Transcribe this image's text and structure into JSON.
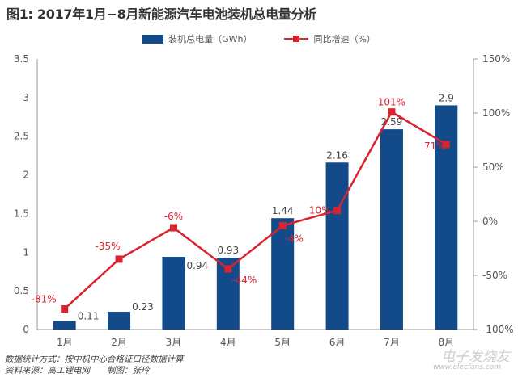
{
  "title": "图1: 2017年1月−8月新能源汽车电池装机总电量分析",
  "footer": {
    "line1": "数据统计方式：按中机中心合格证口径数据计算",
    "line2": "资料来源：高工锂电网　　制图：张玲"
  },
  "watermark": {
    "logo": "电子发烧友",
    "url": "www.elecfans.com"
  },
  "chart_data": {
    "type": "bar+line",
    "title": "图1: 2017年1月−8月新能源汽车电池装机总电量分析",
    "categories": [
      "1月",
      "2月",
      "3月",
      "4月",
      "5月",
      "6月",
      "7月",
      "8月"
    ],
    "series": [
      {
        "name": "装机总电量（GWh）",
        "type": "bar",
        "axis": "left",
        "color": "#134b8a",
        "values": [
          0.11,
          0.23,
          0.94,
          0.93,
          1.44,
          2.16,
          2.59,
          2.9
        ],
        "labels": [
          "0.11",
          "0.23",
          "0.94",
          "0.93",
          "1.44",
          "2.16",
          "2.59",
          "2.9"
        ]
      },
      {
        "name": "同比增速（%）",
        "type": "line",
        "axis": "right",
        "color": "#d9232f",
        "values": [
          -81,
          -35,
          -6,
          -44,
          -4,
          10,
          101,
          71
        ],
        "labels": [
          "-81%",
          "-35%",
          "-6%",
          "-44%",
          "-4%",
          "10%",
          "101%",
          "71%"
        ]
      }
    ],
    "y_left": {
      "range": [
        0,
        3.5
      ],
      "ticks": [
        "0",
        "0.5",
        "1",
        "1.5",
        "2",
        "2.5",
        "3",
        "3.5"
      ]
    },
    "y_right": {
      "range": [
        -100,
        150
      ],
      "ticks": [
        "-100%",
        "-50%",
        "0%",
        "50%",
        "100%",
        "150%"
      ]
    },
    "grid": false,
    "legend": "top-center"
  }
}
